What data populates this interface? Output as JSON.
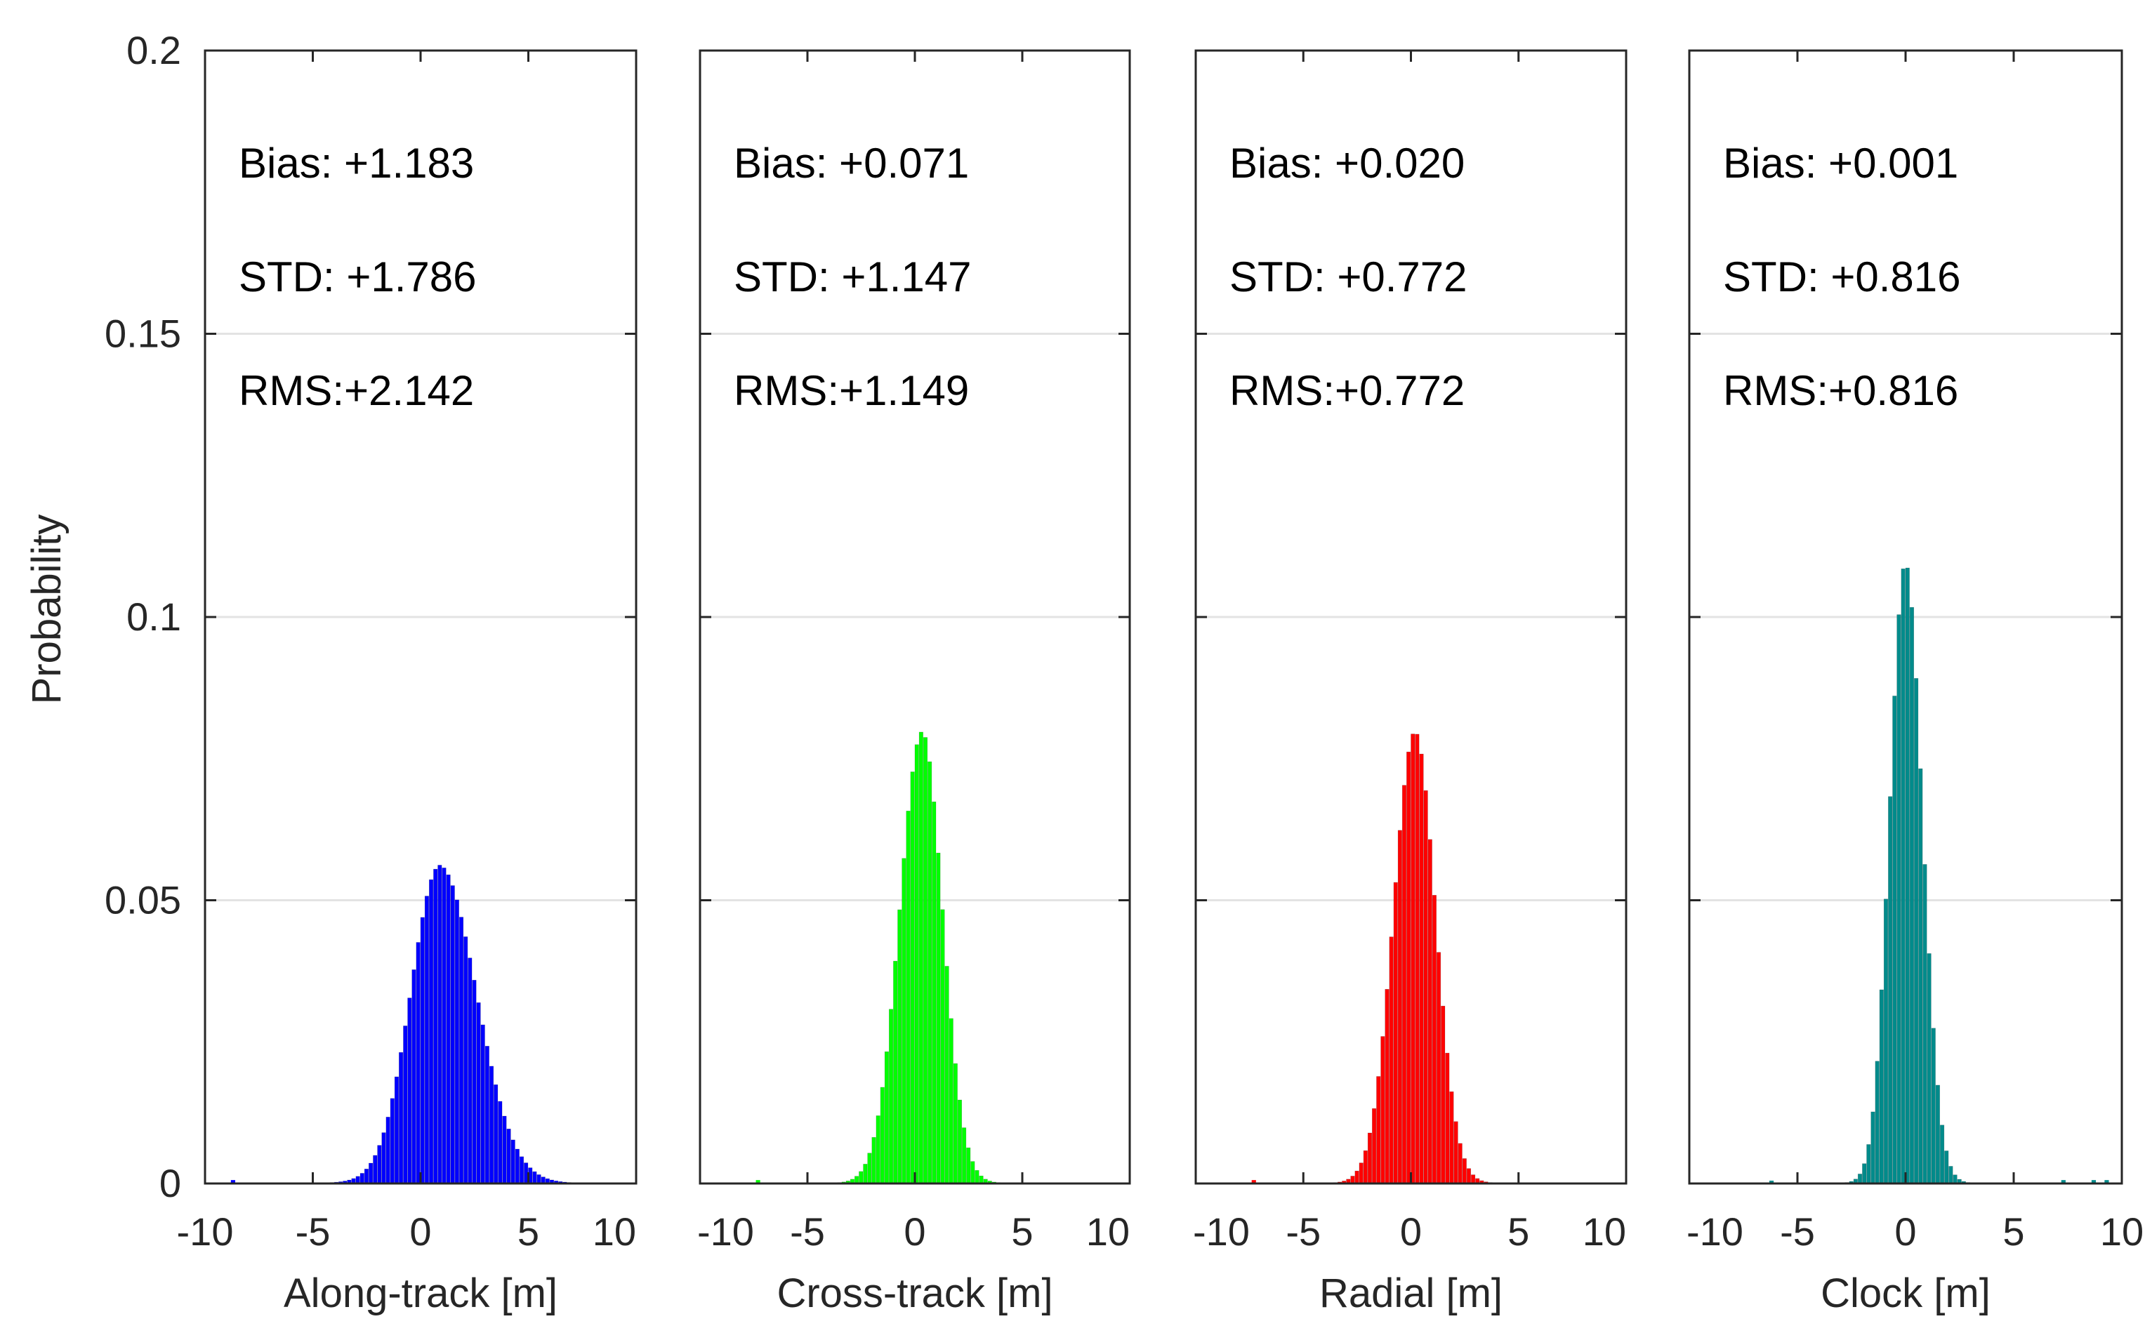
{
  "chart_data": {
    "type": "bar",
    "title": "",
    "ylabel": "Probability",
    "ylim": [
      0,
      0.2
    ],
    "yticks": [
      0,
      0.05,
      0.1,
      0.15,
      0.2
    ],
    "ytick_labels": [
      "0",
      "0.05",
      "0.1",
      "0.15",
      "0.2"
    ],
    "xlim": [
      -10,
      10
    ],
    "xticks": [
      -10,
      -5,
      0,
      5,
      10
    ],
    "grid": "horizontal",
    "bin_width": 0.2,
    "panels": [
      {
        "xlabel": "Along-track [m]",
        "color": "#0000ff",
        "stats": {
          "bias": "Bias: +1.183",
          "std": "STD: +1.786",
          "rms": "RMS:+2.142"
        },
        "peak": 0.055,
        "center": 0.9,
        "sigma_left": 1.35,
        "sigma_right": 1.7,
        "tail": 0.0012,
        "tail_decay": 2.2,
        "range": [
          -8.8,
          9.8
        ],
        "outliers": [
          {
            "x": -8.7,
            "p": 0.0006
          }
        ]
      },
      {
        "xlabel": "Cross-track [m]",
        "color": "#00ff00",
        "stats": {
          "bias": "Bias: +0.071",
          "std": "STD: +1.147",
          "rms": "RMS:+1.149"
        },
        "peak": 0.079,
        "center": 0.35,
        "sigma_left": 1.05,
        "sigma_right": 0.95,
        "tail": 0.0008,
        "tail_decay": 1.6,
        "range": [
          -5.6,
          4.4
        ],
        "outliers": [
          {
            "x": -7.3,
            "p": 0.0006
          }
        ]
      },
      {
        "xlabel": "Radial [m]",
        "color": "#ff0000",
        "stats": {
          "bias": "Bias: +0.020",
          "std": "STD: +0.772",
          "rms": "RMS:+0.772"
        },
        "peak": 0.079,
        "center": 0.2,
        "sigma_left": 1.0,
        "sigma_right": 0.95,
        "tail": 0.0008,
        "tail_decay": 1.6,
        "range": [
          -5.6,
          4.0
        ],
        "outliers": [
          {
            "x": -7.3,
            "p": 0.0006
          }
        ]
      },
      {
        "xlabel": "Clock [m]",
        "color": "#008b8b",
        "stats": {
          "bias": "Bias: +0.001",
          "std": "STD: +0.816",
          "rms": "RMS:+0.816"
        },
        "peak": 0.109,
        "center": 0.0,
        "sigma_left": 0.72,
        "sigma_right": 0.78,
        "tail": 0.0006,
        "tail_decay": 1.4,
        "range": [
          -4.0,
          4.0
        ],
        "outliers": [
          {
            "x": -6.2,
            "p": 0.0005
          },
          {
            "x": 7.3,
            "p": 0.0006
          },
          {
            "x": 8.7,
            "p": 0.0006
          },
          {
            "x": 9.3,
            "p": 0.0006
          }
        ]
      }
    ]
  }
}
